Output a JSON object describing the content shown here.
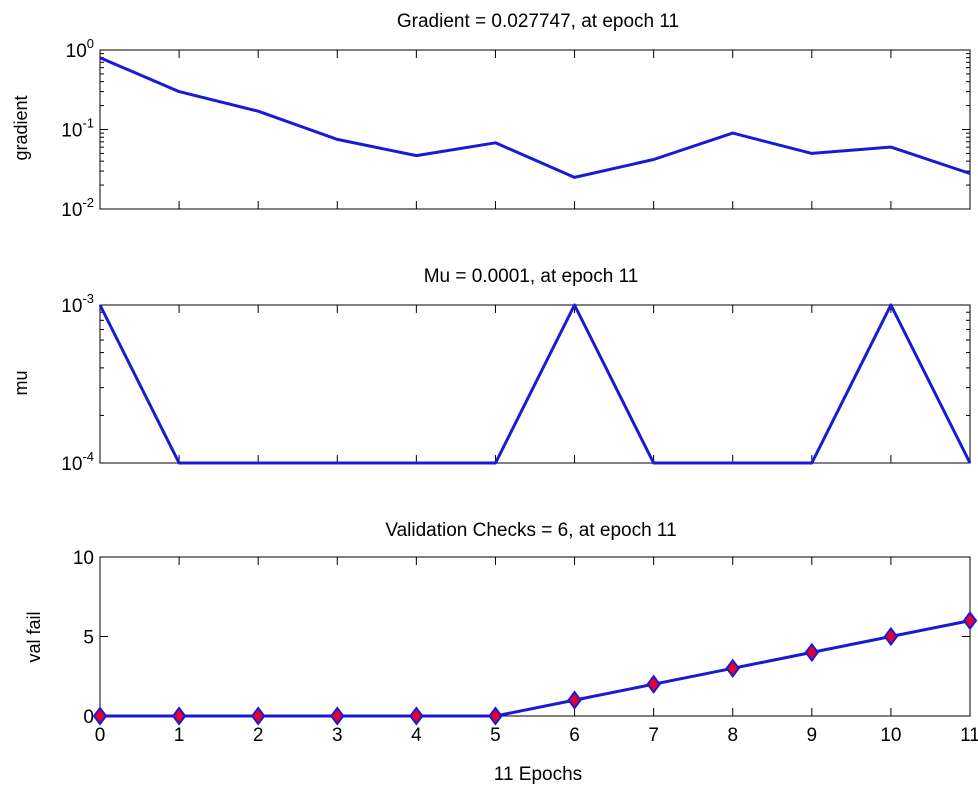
{
  "chart_data": [
    {
      "type": "line",
      "title": "Gradient = 0.027747, at epoch 11",
      "ylabel": "gradient",
      "yscale": "log",
      "ylim": [
        0.01,
        1
      ],
      "yticks": [
        {
          "base": "10",
          "exp": "0",
          "value": 1
        },
        {
          "base": "10",
          "exp": "-1",
          "value": 0.1
        },
        {
          "base": "10",
          "exp": "-2",
          "value": 0.01
        }
      ],
      "xlim": [
        0,
        11
      ],
      "x": [
        0,
        1,
        2,
        3,
        4,
        5,
        6,
        7,
        8,
        9,
        10,
        11
      ],
      "values": [
        0.8,
        0.3,
        0.17,
        0.075,
        0.047,
        0.068,
        0.025,
        0.042,
        0.09,
        0.05,
        0.06,
        0.028
      ],
      "line_color": "#1a1ad6",
      "grid": false
    },
    {
      "type": "line",
      "title": "Mu = 0.0001, at epoch 11",
      "ylabel": "mu",
      "yscale": "log",
      "ylim": [
        0.0001,
        0.001
      ],
      "yticks": [
        {
          "base": "10",
          "exp": "-3",
          "value": 0.001
        },
        {
          "base": "10",
          "exp": "-4",
          "value": 0.0001
        }
      ],
      "xlim": [
        0,
        11
      ],
      "x": [
        0,
        1,
        2,
        3,
        4,
        5,
        6,
        7,
        8,
        9,
        10,
        11
      ],
      "values": [
        0.001,
        0.0001,
        0.0001,
        0.0001,
        0.0001,
        0.0001,
        0.001,
        0.0001,
        0.0001,
        0.0001,
        0.001,
        0.0001
      ],
      "line_color": "#1a1ad6",
      "grid": false
    },
    {
      "type": "scatter",
      "title": "Validation Checks = 6, at epoch 11",
      "ylabel": "val fail",
      "xlabel": "11 Epochs",
      "ylim": [
        0,
        10
      ],
      "yticks": [
        {
          "label": "10",
          "value": 10
        },
        {
          "label": "5",
          "value": 5
        },
        {
          "label": "0",
          "value": 0
        }
      ],
      "xlim": [
        0,
        11
      ],
      "xticks": [
        "0",
        "1",
        "2",
        "3",
        "4",
        "5",
        "6",
        "7",
        "8",
        "9",
        "10",
        "11"
      ],
      "x": [
        0,
        1,
        2,
        3,
        4,
        5,
        6,
        7,
        8,
        9,
        10,
        11
      ],
      "values": [
        0,
        0,
        0,
        0,
        0,
        0,
        1,
        2,
        3,
        4,
        5,
        6
      ],
      "line_color": "#1a1ad6",
      "marker": "diamond",
      "marker_fill": "#e8002a",
      "marker_edge": "#1a1ad6",
      "grid": false
    }
  ]
}
